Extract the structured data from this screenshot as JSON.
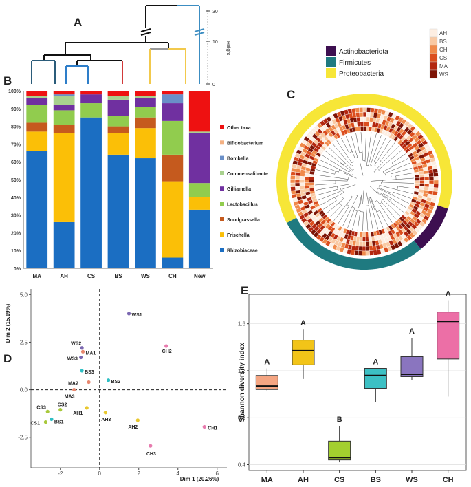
{
  "panels": {
    "A": "A",
    "B": "B",
    "C": "C",
    "D": "D",
    "E": "E"
  },
  "dendrogram": {
    "axis_label": "Height",
    "ticks": [
      {
        "label": "30",
        "value": 30
      },
      {
        "label": "10",
        "value": 10
      },
      {
        "label": "0",
        "value": 0
      }
    ]
  },
  "chart_data": [
    {
      "type": "bar",
      "panel": "B",
      "stacked": true,
      "title": "",
      "categories": [
        "MA",
        "AH",
        "CS",
        "BS",
        "WS",
        "CH",
        "New"
      ],
      "y_ticks": [
        "0%",
        "10%",
        "20%",
        "30%",
        "40%",
        "50%",
        "60%",
        "70%",
        "80%",
        "90%",
        "100%"
      ],
      "series": [
        {
          "name": "Rhizobiaceae",
          "color": "#1B6EC2",
          "values": [
            66,
            26,
            85,
            64,
            62,
            6,
            33
          ]
        },
        {
          "name": "Frischella",
          "color": "#FBBF07",
          "values": [
            11,
            50,
            0,
            12,
            17,
            43,
            7
          ]
        },
        {
          "name": "Snodgrassella",
          "color": "#C55A1E",
          "values": [
            5,
            5,
            0,
            4,
            6,
            15,
            0
          ]
        },
        {
          "name": "Lactobacillus",
          "color": "#91CC4E",
          "values": [
            10,
            8,
            8,
            6,
            6,
            19,
            8
          ]
        },
        {
          "name": "Gilliamella",
          "color": "#7030A0",
          "values": [
            4,
            3,
            5,
            9,
            5,
            10,
            28
          ]
        },
        {
          "name": "Commensalibacte",
          "color": "#A9D18E",
          "values": [
            1,
            5,
            0,
            2,
            1,
            0,
            1
          ]
        },
        {
          "name": "Bombella",
          "color": "#6A8FC8",
          "values": [
            0,
            1,
            0,
            0,
            0,
            5,
            0
          ]
        },
        {
          "name": "Bifidobacterium",
          "color": "#F4B183",
          "values": [
            0,
            0,
            0,
            0,
            0,
            0,
            0
          ]
        },
        {
          "name": "Other taxa",
          "color": "#EE1111",
          "values": [
            3,
            2,
            2,
            3,
            3,
            2,
            23
          ]
        }
      ],
      "legend_order": [
        "Other taxa",
        "Bifidobacterium",
        "Bombella",
        "Commensalibacte",
        "Gilliamella",
        "Lactobacillus",
        "Snodgrassella",
        "Frischella",
        "Rhizobiaceae"
      ]
    },
    {
      "type": "scatter",
      "panel": "D",
      "xlabel": "Dim 1 (20.26%)",
      "ylabel": "Dim 2 (15.19%)",
      "xlim": [
        -3.5,
        6.5
      ],
      "ylim": [
        -4.1,
        5.3
      ],
      "x_ticks": [
        {
          "label": "-2",
          "value": -2
        },
        {
          "label": "0",
          "value": 0
        },
        {
          "label": "2",
          "value": 2
        },
        {
          "label": "4",
          "value": 4
        },
        {
          "label": "6",
          "value": 6
        }
      ],
      "y_ticks": [
        {
          "label": "5.0",
          "value": 5
        },
        {
          "label": "2.5",
          "value": 2.5
        },
        {
          "label": "0.0",
          "value": 0
        },
        {
          "label": "-2.5",
          "value": -2.5
        }
      ],
      "points": [
        {
          "label": "WS1",
          "x": 1.5,
          "y": 4.0,
          "color": "#7B68B1",
          "ldx": 4,
          "ldy": 4
        },
        {
          "label": "WS2",
          "x": -0.9,
          "y": 2.2,
          "color": "#7B68B1",
          "ldx": -16,
          "ldy": -4
        },
        {
          "label": "WS3",
          "x": -0.95,
          "y": 1.7,
          "color": "#7B68B1",
          "ldx": -20,
          "ldy": 4
        },
        {
          "label": "MA1",
          "x": -0.85,
          "y": 2.0,
          "color": "#E8876E",
          "ldx": 4,
          "ldy": 4
        },
        {
          "label": "CH2",
          "x": 3.4,
          "y": 2.3,
          "color": "#E77BAE",
          "ldx": -6,
          "ldy": 10
        },
        {
          "label": "BS3",
          "x": -0.9,
          "y": 1.0,
          "color": "#2FBFC4",
          "ldx": 4,
          "ldy": 4
        },
        {
          "label": "MA2",
          "x": -0.55,
          "y": 0.4,
          "color": "#E8876E",
          "ldx": -30,
          "ldy": 4
        },
        {
          "label": "BS2",
          "x": 0.45,
          "y": 0.5,
          "color": "#2FBFC4",
          "ldx": 4,
          "ldy": 4
        },
        {
          "label": "MA3",
          "x": -1.3,
          "y": 0.0,
          "color": "#E8876E",
          "ldx": -14,
          "ldy": 12
        },
        {
          "label": "CS3",
          "x": -2.65,
          "y": -1.15,
          "color": "#A8C83A",
          "ldx": -16,
          "ldy": -4
        },
        {
          "label": "CS2",
          "x": -2.0,
          "y": -1.05,
          "color": "#A8C83A",
          "ldx": -4,
          "ldy": -5
        },
        {
          "label": "AH1",
          "x": -0.65,
          "y": -0.95,
          "color": "#E8C72D",
          "ldx": -20,
          "ldy": 10
        },
        {
          "label": "AH3",
          "x": 0.3,
          "y": -1.2,
          "color": "#E8C72D",
          "ldx": -6,
          "ldy": 12
        },
        {
          "label": "CS1",
          "x": -2.75,
          "y": -1.7,
          "color": "#A8C83A",
          "ldx": -22,
          "ldy": 4
        },
        {
          "label": "BS1",
          "x": -2.45,
          "y": -1.55,
          "color": "#2FBFC4",
          "ldx": 4,
          "ldy": 6
        },
        {
          "label": "AH2",
          "x": 1.95,
          "y": -1.6,
          "color": "#E8C72D",
          "ldx": -14,
          "ldy": 12
        },
        {
          "label": "CH1",
          "x": 5.35,
          "y": -1.95,
          "color": "#E77BAE",
          "ldx": 5,
          "ldy": 4
        },
        {
          "label": "CH3",
          "x": 2.6,
          "y": -2.95,
          "color": "#E77BAE",
          "ldx": -6,
          "ldy": 14
        }
      ]
    },
    {
      "type": "box",
      "panel": "E",
      "ylabel": "Shannon diversity index",
      "ylim": [
        0.35,
        1.85
      ],
      "y_ticks": [
        {
          "label": "0.4",
          "value": 0.4
        },
        {
          "label": "0.8",
          "value": 0.8
        },
        {
          "label": "1.2",
          "value": 1.2
        },
        {
          "label": "1.6",
          "value": 1.6
        }
      ],
      "groups": [
        {
          "name": "MA",
          "color": "#F4A582",
          "min": 1.03,
          "q1": 1.04,
          "median": 1.07,
          "q3": 1.16,
          "max": 1.22,
          "letter": "A"
        },
        {
          "name": "AH",
          "color": "#F2C418",
          "min": 1.13,
          "q1": 1.25,
          "median": 1.37,
          "q3": 1.46,
          "max": 1.55,
          "letter": "A"
        },
        {
          "name": "CS",
          "color": "#A3CF2F",
          "min": 0.42,
          "q1": 0.44,
          "median": 0.46,
          "q3": 0.6,
          "max": 0.73,
          "letter": "B"
        },
        {
          "name": "BS",
          "color": "#3CC0C4",
          "min": 0.93,
          "q1": 1.05,
          "median": 1.16,
          "q3": 1.22,
          "max": 1.22,
          "letter": "A"
        },
        {
          "name": "WS",
          "color": "#8A75BF",
          "min": 1.12,
          "q1": 1.15,
          "median": 1.17,
          "q3": 1.32,
          "max": 1.48,
          "letter": "A"
        },
        {
          "name": "CH",
          "color": "#EC6FA6",
          "min": 0.98,
          "q1": 1.3,
          "median": 1.62,
          "q3": 1.7,
          "max": 1.8,
          "letter": "A"
        }
      ]
    }
  ],
  "tree_legend": {
    "phyla": [
      {
        "name": "Actinobacteriota",
        "color": "#3D0F50"
      },
      {
        "name": "Firmicutes",
        "color": "#1F7A80"
      },
      {
        "name": "Proteobacteria",
        "color": "#F7E637"
      }
    ],
    "samples": [
      {
        "name": "AH",
        "color": "#FDEEE2"
      },
      {
        "name": "BS",
        "color": "#F9C9A3"
      },
      {
        "name": "CH",
        "color": "#F08A4B"
      },
      {
        "name": "CS",
        "color": "#DB4E1E"
      },
      {
        "name": "MA",
        "color": "#B3260F"
      },
      {
        "name": "WS",
        "color": "#7D1406"
      }
    ]
  }
}
